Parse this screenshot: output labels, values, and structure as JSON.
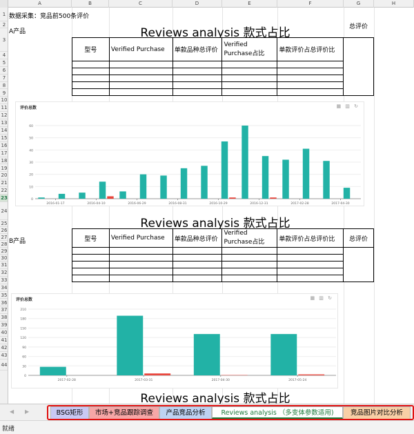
{
  "columns": [
    "A",
    "B",
    "C",
    "D",
    "E",
    "F",
    "G",
    "H"
  ],
  "rows": [
    "1",
    "2",
    "3",
    "4",
    "5",
    "6",
    "7",
    "8",
    "9",
    "10",
    "11",
    "12",
    "13",
    "14",
    "15",
    "16",
    "17",
    "18",
    "19",
    "20",
    "21",
    "22",
    "23",
    "24",
    "25",
    "26",
    "27",
    "28",
    "29",
    "30",
    "31",
    "32",
    "33",
    "34",
    "35",
    "36",
    "37",
    "38",
    "39",
    "40",
    "41",
    "42",
    "43",
    "44"
  ],
  "selected_row": "23",
  "sheet": {
    "header_note": "数据采集：竞品前500条评价",
    "product_a": "A产品",
    "product_b": "B产品",
    "section_title": "Reviews analysis 款式占比",
    "table_headers": {
      "model": "型号",
      "verified": "Verified Purchase",
      "total_reviews": "单款品种总评价",
      "verified_ratio_line1": "Verified",
      "verified_ratio_line2": "Purchase占比",
      "review_ratio": "单款评价占总评价比",
      "total": "总评价"
    }
  },
  "chart_data": [
    {
      "type": "bar",
      "title": "评价总数",
      "x_tick_labels": [
        "2016-01-17",
        "2016-04-10",
        "2016-06-29",
        "2016-08-31",
        "2016-10-29",
        "2016-12-31",
        "2017-02-28",
        "2017-04-30"
      ],
      "ylim": [
        0,
        60
      ],
      "y_ticks": [
        0,
        10,
        20,
        30,
        40,
        50,
        60
      ],
      "series": [
        {
          "color": "#22b2a6",
          "values": [
            1,
            4,
            5,
            14,
            6,
            20,
            19,
            25,
            27,
            47,
            60,
            35,
            32,
            41,
            31,
            9
          ]
        },
        {
          "color": "#e8453c",
          "values": [
            0,
            0,
            0,
            2,
            0,
            0,
            0,
            0,
            0,
            1,
            0,
            1,
            0,
            0,
            0,
            0
          ]
        }
      ]
    },
    {
      "type": "bar",
      "title": "评价总数",
      "x_tick_labels": [
        "2017-02-28",
        "2017-03-31",
        "2017-04-30",
        "2017-05-24"
      ],
      "ylim": [
        0,
        210
      ],
      "y_ticks": [
        0,
        30,
        60,
        90,
        120,
        150,
        180,
        210
      ],
      "series": [
        {
          "color": "#22b2a6",
          "values": [
            27,
            189,
            131,
            131
          ]
        },
        {
          "color": "#e8453c",
          "values": [
            0,
            6,
            1,
            3
          ]
        }
      ]
    }
  ],
  "chart_tools": "▦ ▥ ↻",
  "tab_nav": {
    "prev": "◀",
    "next": "▶"
  },
  "tabs": [
    {
      "label": "BSG矩形",
      "bg": "#c9c9f4",
      "color": "#000000"
    },
    {
      "label": "市场+竞品跟踪调查",
      "bg": "#f6a7a7",
      "color": "#000000"
    },
    {
      "label": "产品竞品分析",
      "bg": "#bed2f2",
      "color": "#000000"
    },
    {
      "label": "Reviews analysis （多变体参数适用)",
      "bg": "#ffffff",
      "color": "#1c7a3a",
      "active": true
    },
    {
      "label": "竞品图片对比分析",
      "bg": "#f8cfa6",
      "color": "#000000"
    }
  ],
  "status": "就绪"
}
